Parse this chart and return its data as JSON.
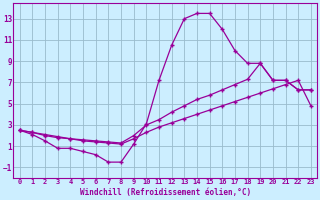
{
  "xlabel": "Windchill (Refroidissement éolien,°C)",
  "bg_color": "#cceeff",
  "line_color": "#990099",
  "grid_color": "#99bbcc",
  "xlim": [
    -0.5,
    23.5
  ],
  "ylim": [
    -2.0,
    14.5
  ],
  "yticks": [
    -1,
    1,
    3,
    5,
    7,
    9,
    11,
    13
  ],
  "xticks": [
    0,
    1,
    2,
    3,
    4,
    5,
    6,
    7,
    8,
    9,
    10,
    11,
    12,
    13,
    14,
    15,
    16,
    17,
    18,
    19,
    20,
    21,
    22,
    23
  ],
  "line1_x": [
    0,
    1,
    2,
    3,
    4,
    5,
    6,
    7,
    8,
    9,
    10,
    11,
    12,
    13,
    14,
    15,
    16,
    17,
    18,
    19,
    20,
    21,
    22,
    23
  ],
  "line1_y": [
    2.5,
    2.1,
    1.5,
    0.8,
    0.8,
    0.5,
    0.2,
    -0.5,
    -0.5,
    1.2,
    3.1,
    7.2,
    10.5,
    13.0,
    13.5,
    13.5,
    12.0,
    10.0,
    8.8,
    8.8,
    7.2,
    7.2,
    6.3,
    6.3
  ],
  "line2_x": [
    0,
    1,
    2,
    3,
    4,
    5,
    6,
    7,
    8,
    9,
    10,
    11,
    12,
    13,
    14,
    15,
    16,
    17,
    18,
    19,
    20,
    21,
    22,
    23
  ],
  "line2_y": [
    2.5,
    2.3,
    2.1,
    1.9,
    1.7,
    1.6,
    1.5,
    1.4,
    1.3,
    2.0,
    3.0,
    3.5,
    4.2,
    4.8,
    5.4,
    5.8,
    6.3,
    6.8,
    7.3,
    8.8,
    7.2,
    7.2,
    6.3,
    6.3
  ],
  "line3_x": [
    0,
    1,
    2,
    3,
    4,
    5,
    6,
    7,
    8,
    9,
    10,
    11,
    12,
    13,
    14,
    15,
    16,
    17,
    18,
    19,
    20,
    21,
    22,
    23
  ],
  "line3_y": [
    2.5,
    2.3,
    2.0,
    1.8,
    1.7,
    1.5,
    1.4,
    1.3,
    1.2,
    1.7,
    2.3,
    2.8,
    3.2,
    3.6,
    4.0,
    4.4,
    4.8,
    5.2,
    5.6,
    6.0,
    6.4,
    6.8,
    7.2,
    4.8
  ]
}
